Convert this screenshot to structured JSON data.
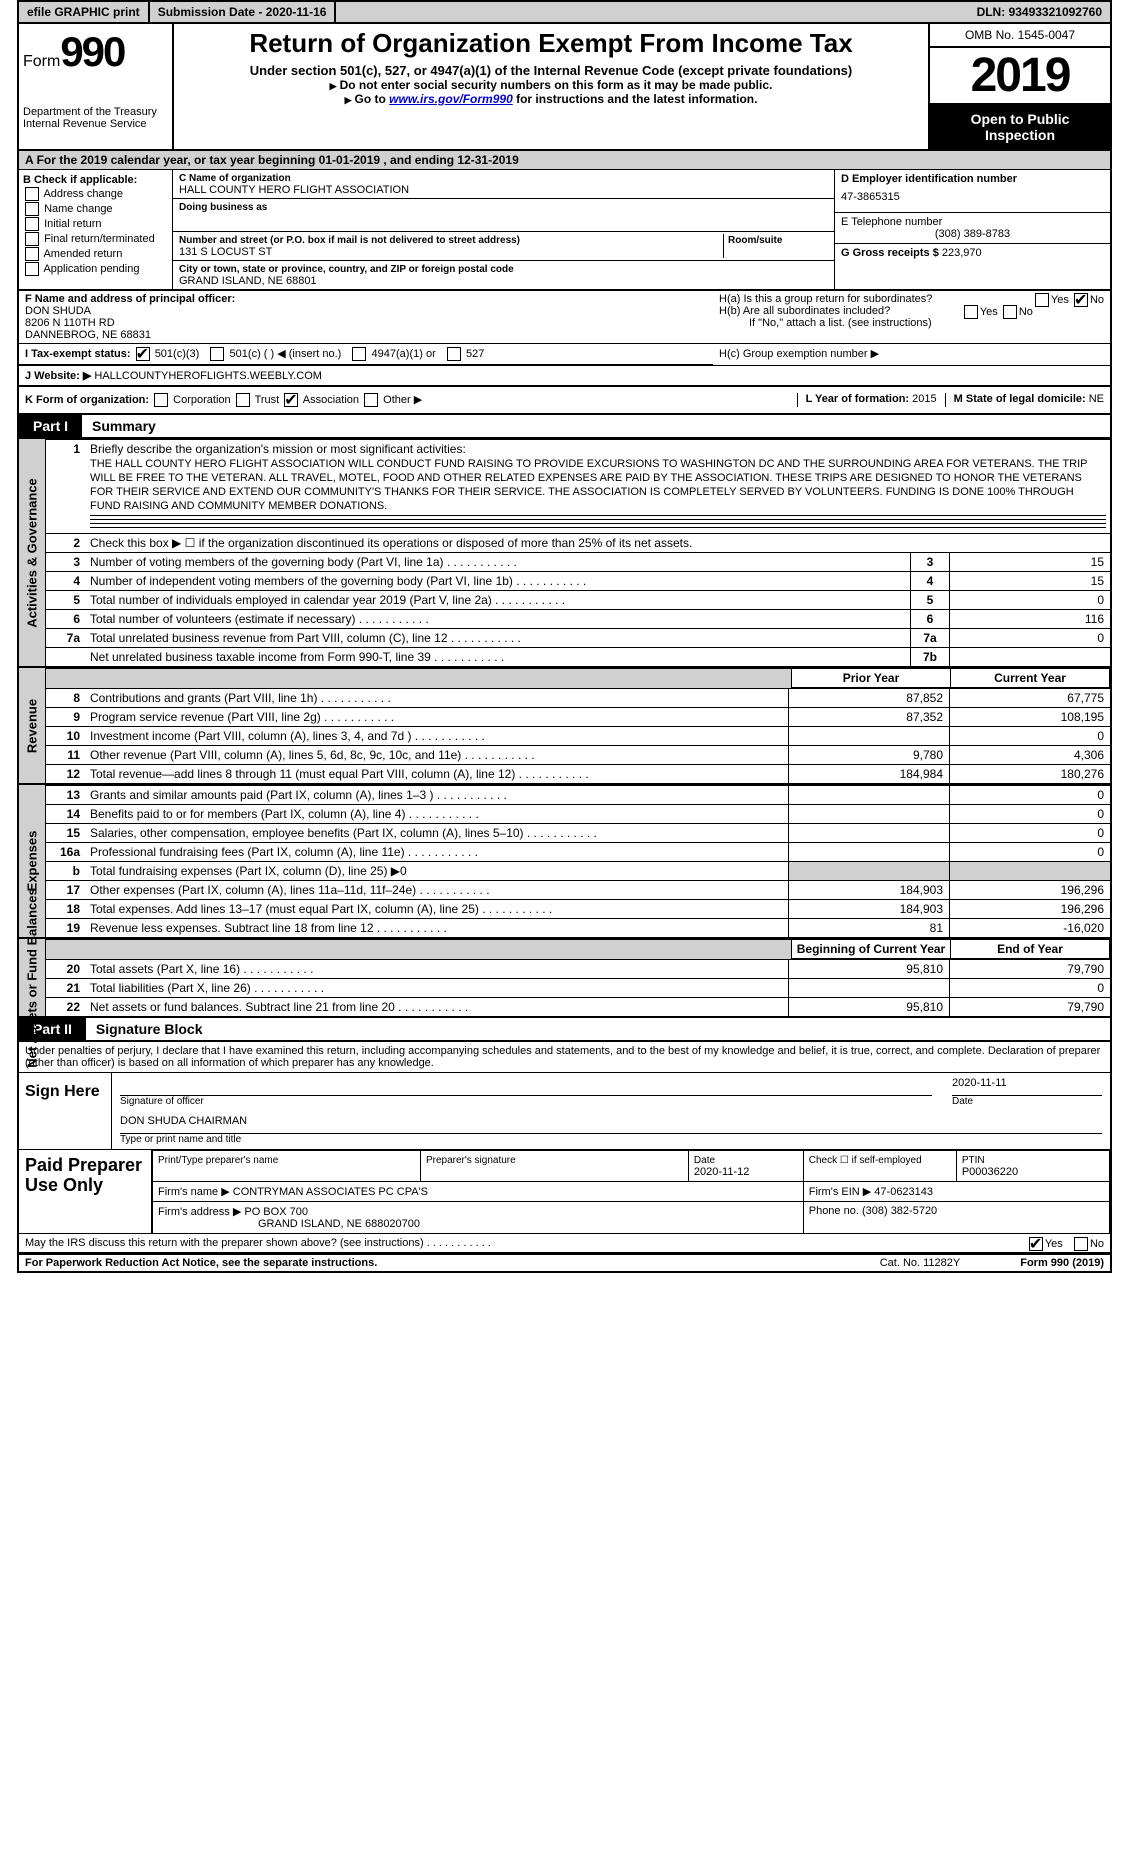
{
  "topbar": {
    "efile": "efile GRAPHIC print",
    "subdate_label": "Submission Date - ",
    "subdate": "2020-11-16",
    "dln_label": "DLN: ",
    "dln": "93493321092760"
  },
  "header": {
    "form_label": "Form",
    "form_num": "990",
    "dept": "Department of the Treasury\nInternal Revenue Service",
    "title": "Return of Organization Exempt From Income Tax",
    "subtitle": "Under section 501(c), 527, or 4947(a)(1) of the Internal Revenue Code (except private foundations)",
    "note1": "Do not enter social security numbers on this form as it may be made public.",
    "note2_pre": "Go to ",
    "note2_link": "www.irs.gov/Form990",
    "note2_post": " for instructions and the latest information.",
    "omb": "OMB No. 1545-0047",
    "year": "2019",
    "inspect": "Open to Public Inspection"
  },
  "row_a": "For the 2019 calendar year, or tax year beginning 01-01-2019   , and ending 12-31-2019",
  "box_b": {
    "title": "B Check if applicable:",
    "opts": [
      "Address change",
      "Name change",
      "Initial return",
      "Final return/terminated",
      "Amended return",
      "Application pending"
    ]
  },
  "box_c": {
    "name_label": "C Name of organization",
    "name": "HALL COUNTY HERO FLIGHT ASSOCIATION",
    "dba_label": "Doing business as",
    "addr_label": "Number and street (or P.O. box if mail is not delivered to street address)",
    "addr": "131 S LOCUST ST",
    "suite_label": "Room/suite",
    "city_label": "City or town, state or province, country, and ZIP or foreign postal code",
    "city": "GRAND ISLAND, NE  68801"
  },
  "box_d": {
    "ein_label": "D Employer identification number",
    "ein": "47-3865315",
    "tel_label": "E Telephone number",
    "tel": "(308) 389-8783",
    "gross_label": "G Gross receipts $ ",
    "gross": "223,970"
  },
  "box_f": {
    "label": "F  Name and address of principal officer:",
    "name": "DON SHUDA",
    "addr1": "8206 N 110TH RD",
    "addr2": "DANNEBROG, NE  68831"
  },
  "box_h": {
    "ha": "H(a)  Is this a group return for subordinates?",
    "hb": "H(b)  Are all subordinates included?",
    "hb_note": "If \"No,\" attach a list. (see instructions)",
    "hc": "H(c)  Group exemption number ▶",
    "yes": "Yes",
    "no": "No"
  },
  "row_i": {
    "label": "I   Tax-exempt status:",
    "o1": "501(c)(3)",
    "o2": "501(c) (  ) ◀ (insert no.)",
    "o3": "4947(a)(1) or",
    "o4": "527"
  },
  "row_j": {
    "label": "J  Website: ▶ ",
    "val": "HALLCOUNTYHEROFLIGHTS.WEEBLY.COM"
  },
  "row_k": {
    "label": "K Form of organization:",
    "o1": "Corporation",
    "o2": "Trust",
    "o3": "Association",
    "o4": "Other ▶",
    "l_label": "L Year of formation: ",
    "l_val": "2015",
    "m_label": "M State of legal domicile: ",
    "m_val": "NE"
  },
  "part1": {
    "tab": "Part I",
    "title": "Summary"
  },
  "mission_label": "Briefly describe the organization's mission or most significant activities:",
  "mission": "THE HALL COUNTY HERO FLIGHT ASSOCIATION WILL CONDUCT FUND RAISING TO PROVIDE EXCURSIONS TO WASHINGTON DC AND THE SURROUNDING AREA FOR VETERANS. THE TRIP WILL BE FREE TO THE VETERAN. ALL TRAVEL, MOTEL, FOOD AND OTHER RELATED EXPENSES ARE PAID BY THE ASSOCIATION. THESE TRIPS ARE DESIGNED TO HONOR THE VETERANS FOR THEIR SERVICE AND EXTEND OUR COMMUNITY'S THANKS FOR THEIR SERVICE. THE ASSOCIATION IS COMPLETELY SERVED BY VOLUNTEERS. FUNDING IS DONE 100% THROUGH FUND RAISING AND COMMUNITY MEMBER DONATIONS.",
  "vtabs": {
    "ag": "Activities & Governance",
    "rev": "Revenue",
    "exp": "Expenses",
    "net": "Net Assets or Fund Balances"
  },
  "lines_ag": [
    {
      "n": "2",
      "t": "Check this box ▶ ☐  if the organization discontinued its operations or disposed of more than 25% of its net assets."
    },
    {
      "n": "3",
      "t": "Number of voting members of the governing body (Part VI, line 1a)",
      "rn": "3",
      "v": "15"
    },
    {
      "n": "4",
      "t": "Number of independent voting members of the governing body (Part VI, line 1b)",
      "rn": "4",
      "v": "15"
    },
    {
      "n": "5",
      "t": "Total number of individuals employed in calendar year 2019 (Part V, line 2a)",
      "rn": "5",
      "v": "0"
    },
    {
      "n": "6",
      "t": "Total number of volunteers (estimate if necessary)",
      "rn": "6",
      "v": "116"
    },
    {
      "n": "7a",
      "t": "Total unrelated business revenue from Part VIII, column (C), line 12",
      "rn": "7a",
      "v": "0"
    },
    {
      "n": "",
      "t": "Net unrelated business taxable income from Form 990-T, line 39",
      "rn": "7b",
      "v": ""
    }
  ],
  "yr_hdr": {
    "prior": "Prior Year",
    "current": "Current Year",
    "begin": "Beginning of Current Year",
    "end": "End of Year"
  },
  "lines_rev": [
    {
      "n": "8",
      "t": "Contributions and grants (Part VIII, line 1h)",
      "p": "87,852",
      "c": "67,775"
    },
    {
      "n": "9",
      "t": "Program service revenue (Part VIII, line 2g)",
      "p": "87,352",
      "c": "108,195"
    },
    {
      "n": "10",
      "t": "Investment income (Part VIII, column (A), lines 3, 4, and 7d )",
      "p": "",
      "c": "0"
    },
    {
      "n": "11",
      "t": "Other revenue (Part VIII, column (A), lines 5, 6d, 8c, 9c, 10c, and 11e)",
      "p": "9,780",
      "c": "4,306"
    },
    {
      "n": "12",
      "t": "Total revenue—add lines 8 through 11 (must equal Part VIII, column (A), line 12)",
      "p": "184,984",
      "c": "180,276"
    }
  ],
  "lines_exp": [
    {
      "n": "13",
      "t": "Grants and similar amounts paid (Part IX, column (A), lines 1–3 )",
      "p": "",
      "c": "0"
    },
    {
      "n": "14",
      "t": "Benefits paid to or for members (Part IX, column (A), line 4)",
      "p": "",
      "c": "0"
    },
    {
      "n": "15",
      "t": "Salaries, other compensation, employee benefits (Part IX, column (A), lines 5–10)",
      "p": "",
      "c": "0"
    },
    {
      "n": "16a",
      "t": "Professional fundraising fees (Part IX, column (A), line 11e)",
      "p": "",
      "c": "0"
    },
    {
      "n": "b",
      "t": "Total fundraising expenses (Part IX, column (D), line 25) ▶0",
      "grey": true
    },
    {
      "n": "17",
      "t": "Other expenses (Part IX, column (A), lines 11a–11d, 11f–24e)",
      "p": "184,903",
      "c": "196,296"
    },
    {
      "n": "18",
      "t": "Total expenses. Add lines 13–17 (must equal Part IX, column (A), line 25)",
      "p": "184,903",
      "c": "196,296"
    },
    {
      "n": "19",
      "t": "Revenue less expenses. Subtract line 18 from line 12",
      "p": "81",
      "c": "-16,020"
    }
  ],
  "lines_net": [
    {
      "n": "20",
      "t": "Total assets (Part X, line 16)",
      "p": "95,810",
      "c": "79,790"
    },
    {
      "n": "21",
      "t": "Total liabilities (Part X, line 26)",
      "p": "",
      "c": "0"
    },
    {
      "n": "22",
      "t": "Net assets or fund balances. Subtract line 21 from line 20",
      "p": "95,810",
      "c": "79,790"
    }
  ],
  "part2": {
    "tab": "Part II",
    "title": "Signature Block"
  },
  "perjury": "Under penalties of perjury, I declare that I have examined this return, including accompanying schedules and statements, and to the best of my knowledge and belief, it is true, correct, and complete. Declaration of preparer (other than officer) is based on all information of which preparer has any knowledge.",
  "sign": {
    "label": "Sign Here",
    "sig_label": "Signature of officer",
    "date_label": "Date",
    "date": "2020-11-11",
    "name": "DON SHUDA CHAIRMAN",
    "name_label": "Type or print name and title"
  },
  "prep": {
    "label": "Paid Preparer Use Only",
    "h1": "Print/Type preparer's name",
    "h2": "Preparer's signature",
    "h3": "Date",
    "date": "2020-11-12",
    "h4": "Check ☐ if self-employed",
    "h5": "PTIN",
    "ptin": "P00036220",
    "firm_name_l": "Firm's name    ▶",
    "firm_name": "CONTRYMAN ASSOCIATES PC CPA'S",
    "firm_ein_l": "Firm's EIN ▶",
    "firm_ein": "47-0623143",
    "firm_addr_l": "Firm's address ▶",
    "firm_addr1": "PO BOX 700",
    "firm_addr2": "GRAND ISLAND, NE  688020700",
    "phone_l": "Phone no.",
    "phone": "(308) 382-5720"
  },
  "discuss": "May the IRS discuss this return with the preparer shown above? (see instructions)",
  "footer": {
    "l": "For Paperwork Reduction Act Notice, see the separate instructions.",
    "c": "Cat. No. 11282Y",
    "r": "Form 990 (2019)"
  }
}
